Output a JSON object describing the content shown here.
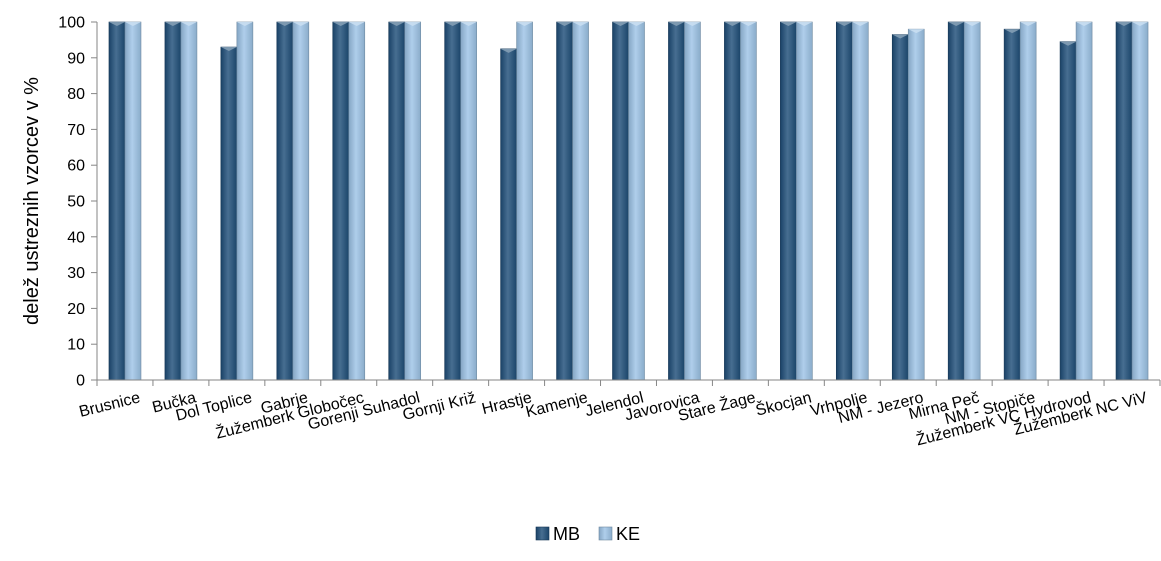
{
  "chart_data": {
    "type": "bar",
    "ylabel": "delež ustreznih vzorcev v %",
    "ylim": [
      0,
      100
    ],
    "yticks": [
      0,
      10,
      20,
      30,
      40,
      50,
      60,
      70,
      80,
      90,
      100
    ],
    "grid": false,
    "legend_position": "bottom",
    "categories": [
      "Brusnice",
      "Bučka",
      "Dol Toplice",
      "Gabrje",
      "Žužemberk Globočec",
      "Gorenji Suhadol",
      "Gornji Križ",
      "Hrastje",
      "Kamenje",
      "Jelendol",
      "Javorovica",
      "Stare Žage",
      "Škocjan",
      "Vrhpolje",
      "NM  - Jezero",
      "Mirna Peč",
      "NM - Stopiče",
      "Žužemberk VC  Hydrovod",
      "Žužemberk NC ViV"
    ],
    "series": [
      {
        "name": "MB",
        "color": "#1f4e79",
        "values": [
          100,
          100,
          93,
          100,
          100,
          100,
          100,
          92.5,
          100,
          100,
          100,
          100,
          100,
          100,
          96.5,
          100,
          98,
          94.5,
          100
        ]
      },
      {
        "name": "KE",
        "color": "#9dc3e6",
        "values": [
          100,
          100,
          100,
          100,
          100,
          100,
          100,
          100,
          100,
          100,
          100,
          100,
          100,
          100,
          98,
          100,
          100,
          100,
          100
        ]
      }
    ]
  }
}
